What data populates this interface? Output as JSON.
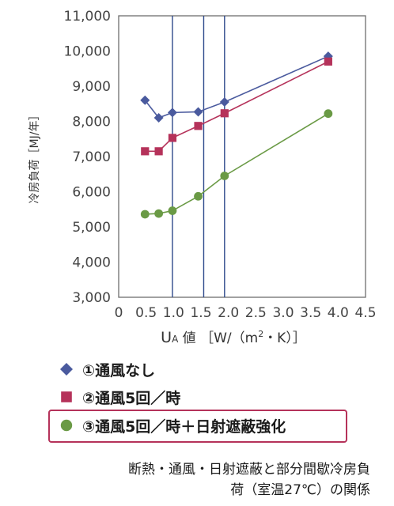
{
  "chart_data": {
    "type": "line",
    "title": "",
    "ylabel": "冷房負荷［MJ/年］",
    "xlabel": "UA 値 ［W/（m²・K）］",
    "xlabel_parts": {
      "u": "U",
      "a": "A",
      "rest": " 値 ［W/（m",
      "sup": "2",
      "tail": "・K）］"
    },
    "xlim": [
      0,
      4.5
    ],
    "ylim": [
      3000,
      11000
    ],
    "x_ticks": [
      "0",
      "0.5",
      "1.0",
      "1.5",
      "2.0",
      "2.5",
      "3.0",
      "3.5",
      "4.0",
      "4.5"
    ],
    "x_tick_values": [
      0,
      0.5,
      1.0,
      1.5,
      2.0,
      2.5,
      3.0,
      3.5,
      4.0,
      4.5
    ],
    "y_ticks": [
      "3,000",
      "4,000",
      "5,000",
      "6,000",
      "7,000",
      "8,000",
      "9,000",
      "10,000",
      "11,000"
    ],
    "y_tick_values": [
      3000,
      4000,
      5000,
      6000,
      7000,
      8000,
      9000,
      10000,
      11000
    ],
    "vertical_lines": [
      0.98,
      1.55,
      1.93
    ],
    "series": [
      {
        "name": "①通風なし",
        "color": "#4a5a9e",
        "marker": "diamond",
        "points": [
          [
            0.48,
            8600
          ],
          [
            0.73,
            8100
          ],
          [
            0.98,
            8250
          ],
          [
            1.45,
            8270
          ],
          [
            1.93,
            8550
          ],
          [
            3.82,
            9850
          ]
        ]
      },
      {
        "name": "②通風5回／時",
        "color": "#b5325a",
        "marker": "square",
        "points": [
          [
            0.48,
            7150
          ],
          [
            0.73,
            7150
          ],
          [
            0.98,
            7530
          ],
          [
            1.45,
            7870
          ],
          [
            1.93,
            8230
          ],
          [
            3.82,
            9700
          ]
        ]
      },
      {
        "name": "③通風5回／時＋日射遮蔽強化",
        "color": "#6a9a45",
        "marker": "circle",
        "points": [
          [
            0.48,
            5360
          ],
          [
            0.73,
            5380
          ],
          [
            0.98,
            5460
          ],
          [
            1.45,
            5870
          ],
          [
            1.93,
            6450
          ],
          [
            3.82,
            8220
          ]
        ]
      }
    ],
    "legend_position": "bottom",
    "grid": false
  },
  "caption": {
    "line1": "断熱・通風・日射遮蔽と部分間歇冷房負",
    "line2": "荷（室温27℃）の関係"
  }
}
